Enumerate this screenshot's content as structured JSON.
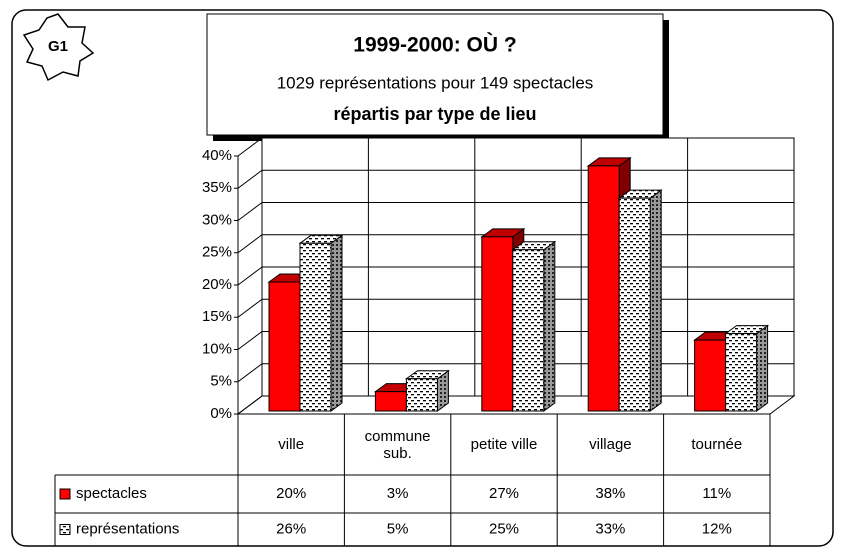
{
  "badge": "G1",
  "chart_data": {
    "type": "bar",
    "title": "1999-2000: OÙ ?",
    "subtitle": "1029 représentations pour 149 spectacles",
    "subtitle2": "répartis par type de lieu",
    "categories": [
      "ville",
      "commune sub.",
      "petite ville",
      "village",
      "tournée"
    ],
    "series": [
      {
        "name": "spectacles",
        "color": "#ff0000",
        "values": [
          20,
          3,
          27,
          38,
          11
        ],
        "value_labels": [
          "20%",
          "3%",
          "27%",
          "38%",
          "11%"
        ]
      },
      {
        "name": "représentations",
        "color": "#ffffff",
        "values": [
          26,
          5,
          25,
          33,
          12
        ],
        "value_labels": [
          "26%",
          "5%",
          "25%",
          "33%",
          "12%"
        ]
      }
    ],
    "ylim": [
      0,
      40
    ],
    "yticks": [
      {
        "value": 0,
        "label": "0%"
      },
      {
        "value": 5,
        "label": "5%"
      },
      {
        "value": 10,
        "label": "10%"
      },
      {
        "value": 15,
        "label": "15%"
      },
      {
        "value": 20,
        "label": "20%"
      },
      {
        "value": 25,
        "label": "25%"
      },
      {
        "value": 30,
        "label": "30%"
      },
      {
        "value": 35,
        "label": "35%"
      },
      {
        "value": 40,
        "label": "40%"
      }
    ],
    "grid": true
  }
}
